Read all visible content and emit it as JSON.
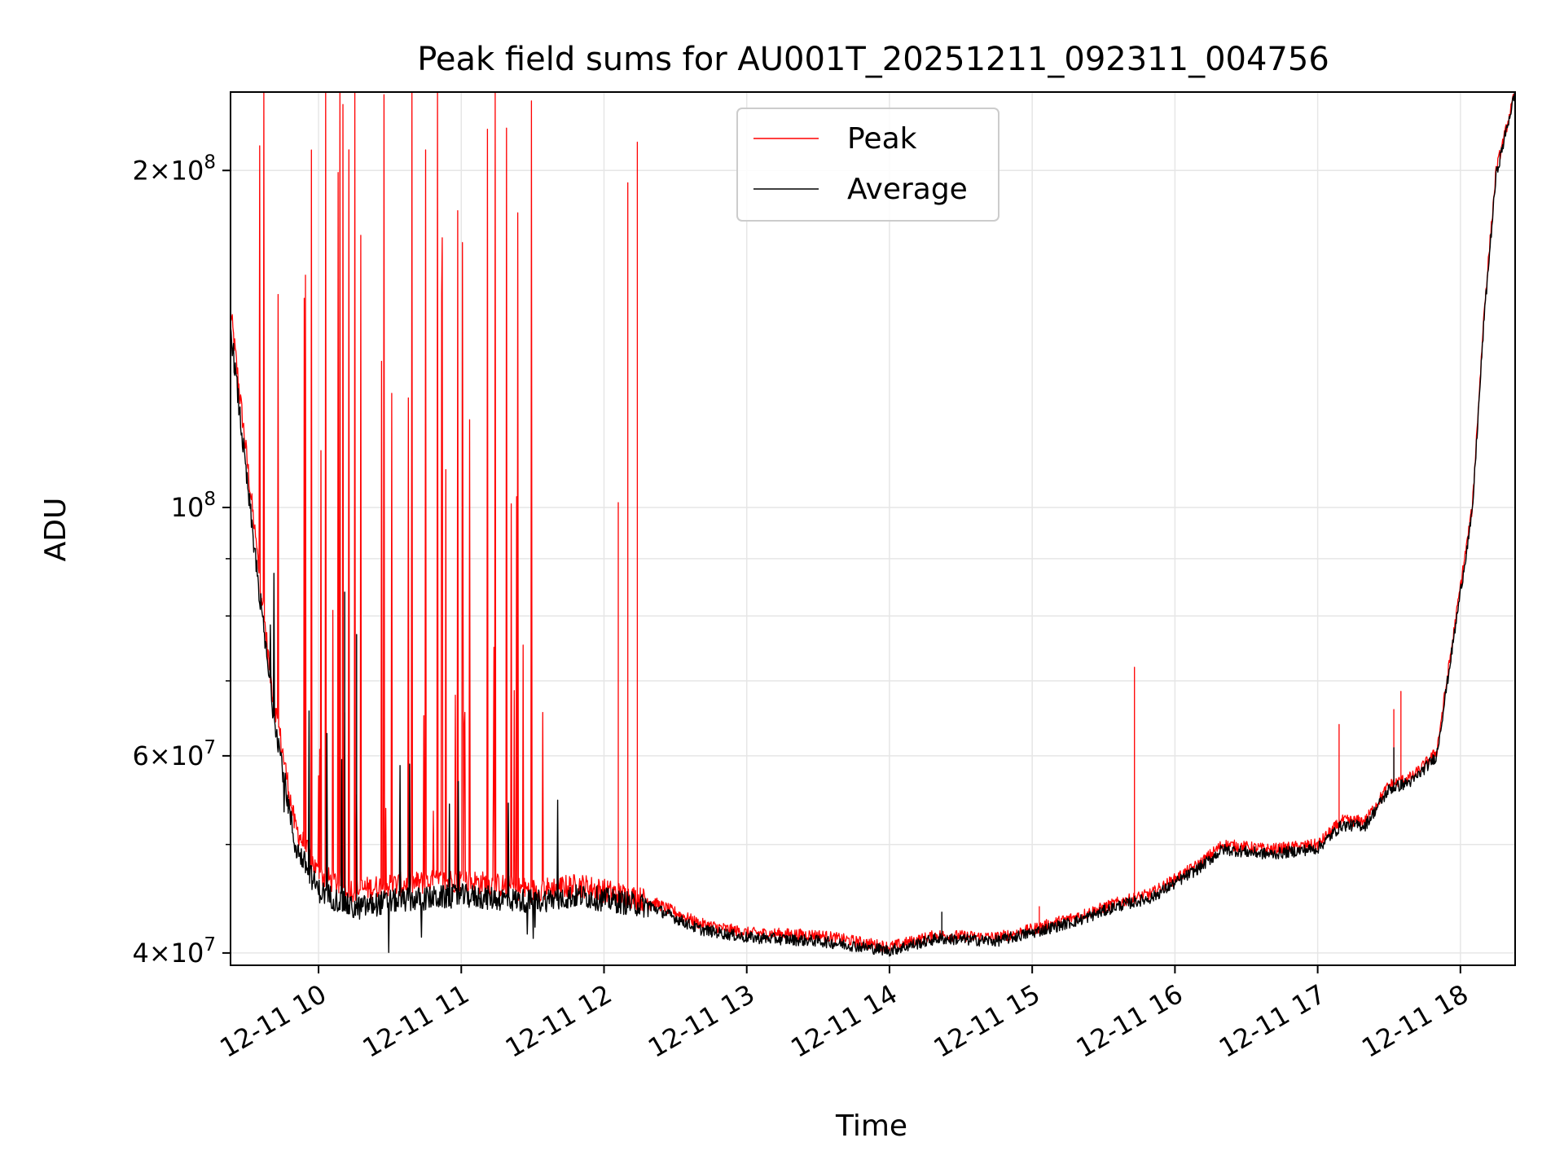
{
  "chart_data": {
    "type": "line",
    "title": "Peak field sums for AU001T_20251211_092311_004756",
    "xlabel": "Time",
    "ylabel": "ADU",
    "xlim": [
      "12-11 09:23",
      "12-11 18:23"
    ],
    "ylim": [
      39000000,
      235000000
    ],
    "yscale": "log",
    "grid": true,
    "legend_position": "top-center",
    "x_ticks": [
      "12-11 10",
      "12-11 11",
      "12-11 12",
      "12-11 13",
      "12-11 14",
      "12-11 15",
      "12-11 16",
      "12-11 17",
      "12-11 18"
    ],
    "y_ticks": [
      {
        "value": 40000000,
        "mantissa": "4",
        "exponent": "7"
      },
      {
        "value": 60000000,
        "mantissa": "6",
        "exponent": "7"
      },
      {
        "value": 100000000,
        "mantissa": "",
        "exponent": "8"
      },
      {
        "value": 200000000,
        "mantissa": "2",
        "exponent": "8"
      }
    ],
    "series": [
      {
        "name": "Peak",
        "color": "#ff0000",
        "baseline": [
          [
            "12-11 09:23",
            150000000
          ],
          [
            "12-11 09:30",
            110000000
          ],
          [
            "12-11 09:40",
            70000000
          ],
          [
            "12-11 09:50",
            52000000
          ],
          [
            "12-11 10:00",
            47000000
          ],
          [
            "12-11 10:15",
            45500000
          ],
          [
            "12-11 10:30",
            46000000
          ],
          [
            "12-11 11:00",
            46500000
          ],
          [
            "12-11 11:30",
            45500000
          ],
          [
            "12-11 11:50",
            46000000
          ],
          [
            "12-11 12:20",
            44500000
          ],
          [
            "12-11 12:40",
            42500000
          ],
          [
            "12-11 13:00",
            41700000
          ],
          [
            "12-11 13:30",
            41500000
          ],
          [
            "12-11 14:00",
            40500000
          ],
          [
            "12-11 14:20",
            41500000
          ],
          [
            "12-11 14:45",
            41300000
          ],
          [
            "12-11 15:00",
            42000000
          ],
          [
            "12-11 15:20",
            43200000
          ],
          [
            "12-11 15:35",
            44300000
          ],
          [
            "12-11 15:50",
            45200000
          ],
          [
            "12-11 16:10",
            48000000
          ],
          [
            "12-11 16:20",
            50000000
          ],
          [
            "12-11 16:40",
            49500000
          ],
          [
            "12-11 17:00",
            50000000
          ],
          [
            "12-11 17:10",
            52500000
          ],
          [
            "12-11 17:20",
            52500000
          ],
          [
            "12-11 17:30",
            56500000
          ],
          [
            "12-11 17:40",
            57500000
          ],
          [
            "12-11 17:50",
            60500000
          ],
          [
            "12-11 18:00",
            85000000
          ],
          [
            "12-11 18:05",
            100000000
          ],
          [
            "12-11 18:10",
            150000000
          ],
          [
            "12-11 18:15",
            200000000
          ],
          [
            "12-11 18:23",
            235000000
          ]
        ],
        "spikes": [
          [
            "12-11 12:06",
            101000000
          ],
          [
            "12-11 12:10",
            195000000
          ],
          [
            "12-11 12:14",
            212000000
          ],
          [
            "12-11 15:03",
            44000000
          ],
          [
            "12-11 15:43",
            72000000
          ],
          [
            "12-11 17:09",
            64000000
          ],
          [
            "12-11 17:32",
            66000000
          ],
          [
            "12-11 17:35",
            68500000
          ]
        ]
      },
      {
        "name": "Average",
        "color": "#000000",
        "baseline": [
          [
            "12-11 09:23",
            145000000
          ],
          [
            "12-11 09:30",
            105000000
          ],
          [
            "12-11 09:40",
            68000000
          ],
          [
            "12-11 09:50",
            50000000
          ],
          [
            "12-11 10:00",
            45500000
          ],
          [
            "12-11 10:15",
            43800000
          ],
          [
            "12-11 10:30",
            44500000
          ],
          [
            "12-11 11:00",
            45000000
          ],
          [
            "12-11 11:30",
            44500000
          ],
          [
            "12-11 11:50",
            45000000
          ],
          [
            "12-11 12:20",
            44000000
          ],
          [
            "12-11 12:40",
            42000000
          ],
          [
            "12-11 13:00",
            41300000
          ],
          [
            "12-11 13:30",
            41000000
          ],
          [
            "12-11 14:00",
            40200000
          ],
          [
            "12-11 14:20",
            41200000
          ],
          [
            "12-11 14:45",
            41000000
          ],
          [
            "12-11 15:00",
            41700000
          ],
          [
            "12-11 15:20",
            42800000
          ],
          [
            "12-11 15:35",
            44000000
          ],
          [
            "12-11 15:50",
            44800000
          ],
          [
            "12-11 16:10",
            47600000
          ],
          [
            "12-11 16:20",
            49500000
          ],
          [
            "12-11 16:40",
            49000000
          ],
          [
            "12-11 17:00",
            49600000
          ],
          [
            "12-11 17:10",
            52000000
          ],
          [
            "12-11 17:20",
            52000000
          ],
          [
            "12-11 17:30",
            56000000
          ],
          [
            "12-11 17:40",
            57000000
          ],
          [
            "12-11 17:50",
            60000000
          ],
          [
            "12-11 18:00",
            84000000
          ],
          [
            "12-11 18:05",
            99000000
          ],
          [
            "12-11 18:10",
            148000000
          ],
          [
            "12-11 18:15",
            198000000
          ],
          [
            "12-11 18:23",
            235000000
          ]
        ],
        "spikes": [
          [
            "12-11 10:11",
            84000000
          ],
          [
            "12-11 10:16",
            77000000
          ],
          [
            "12-11 14:22",
            43500000
          ],
          [
            "12-11 17:32",
            61000000
          ]
        ]
      }
    ]
  }
}
